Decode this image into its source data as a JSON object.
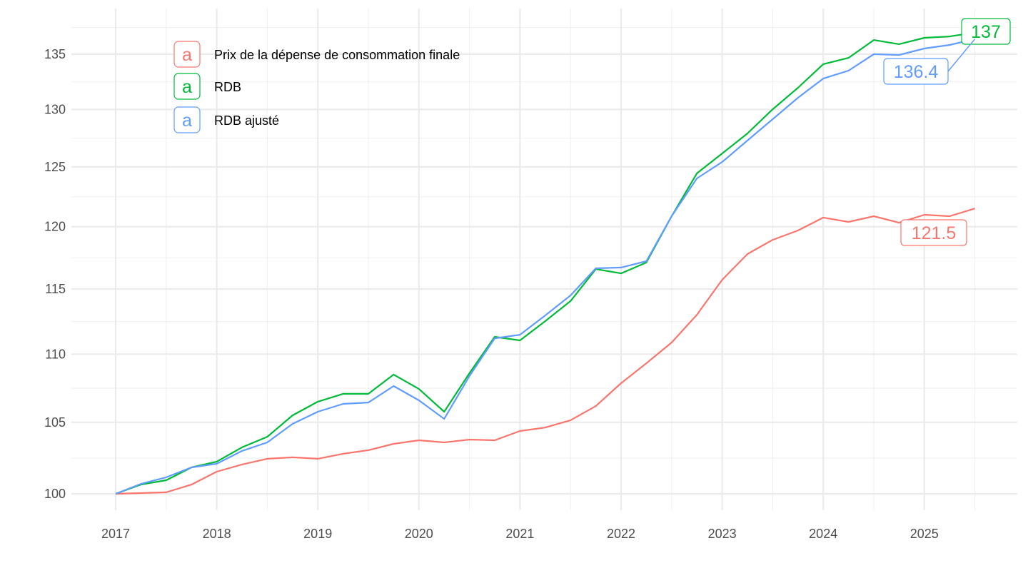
{
  "chart_data": {
    "type": "line",
    "title": "",
    "xlabel": "",
    "ylabel": "",
    "y_scale": "log",
    "ylim": [
      98.8,
      138.2
    ],
    "xlim": [
      2016.6,
      2025.95
    ],
    "grid": true,
    "legend_position": "top-left",
    "x_ticks": [
      2017,
      2018,
      2019,
      2020,
      2021,
      2022,
      2023,
      2024,
      2025
    ],
    "y_ticks": [
      100,
      105,
      110,
      115,
      120,
      125,
      130,
      135
    ],
    "x": [
      2017.0,
      2017.25,
      2017.5,
      2017.75,
      2018.0,
      2018.25,
      2018.5,
      2018.75,
      2019.0,
      2019.25,
      2019.5,
      2019.75,
      2020.0,
      2020.25,
      2020.5,
      2020.75,
      2021.0,
      2021.25,
      2021.5,
      2021.75,
      2022.0,
      2022.25,
      2022.5,
      2022.75,
      2023.0,
      2023.25,
      2023.5,
      2023.75,
      2024.0,
      2024.25,
      2024.5,
      2024.75,
      2025.0,
      2025.25,
      2025.5
    ],
    "series": [
      {
        "name": "Prix de la dépense de consommation finale",
        "color": "#F8766D",
        "end_label": "121.5",
        "values": [
          100.0,
          100.05,
          100.1,
          100.63,
          101.52,
          102.02,
          102.42,
          102.52,
          102.42,
          102.77,
          103.02,
          103.47,
          103.72,
          103.57,
          103.77,
          103.72,
          104.38,
          104.63,
          105.15,
          106.17,
          107.84,
          109.32,
          110.88,
          113.0,
          115.73,
          117.78,
          118.93,
          119.69,
          120.75,
          120.39,
          120.86,
          120.33,
          120.98,
          120.86,
          121.5
        ]
      },
      {
        "name": "RDB",
        "color": "#00BA38",
        "end_label": "137",
        "values": [
          100.0,
          100.63,
          100.93,
          101.82,
          102.22,
          103.22,
          103.97,
          105.5,
          106.49,
          107.06,
          107.06,
          108.48,
          107.42,
          105.76,
          108.58,
          111.31,
          111.04,
          112.51,
          114.06,
          116.58,
          116.24,
          117.1,
          120.86,
          124.45,
          126.15,
          127.89,
          130.02,
          131.94,
          134.08,
          134.66,
          136.31,
          135.92,
          136.51,
          136.64,
          137.0
        ]
      },
      {
        "name": "RDB ajusté",
        "color": "#619CFF",
        "end_label": "136.4",
        "values": [
          100.0,
          100.68,
          101.13,
          101.82,
          102.07,
          102.97,
          103.57,
          104.89,
          105.76,
          106.33,
          106.43,
          107.63,
          106.59,
          105.25,
          108.37,
          111.2,
          111.47,
          112.95,
          114.5,
          116.64,
          116.7,
          117.21,
          120.86,
          124.02,
          125.42,
          127.27,
          129.14,
          131.04,
          132.77,
          133.49,
          135.0,
          134.93,
          135.52,
          135.85,
          136.4
        ]
      }
    ],
    "legend_key_glyph": "a"
  }
}
